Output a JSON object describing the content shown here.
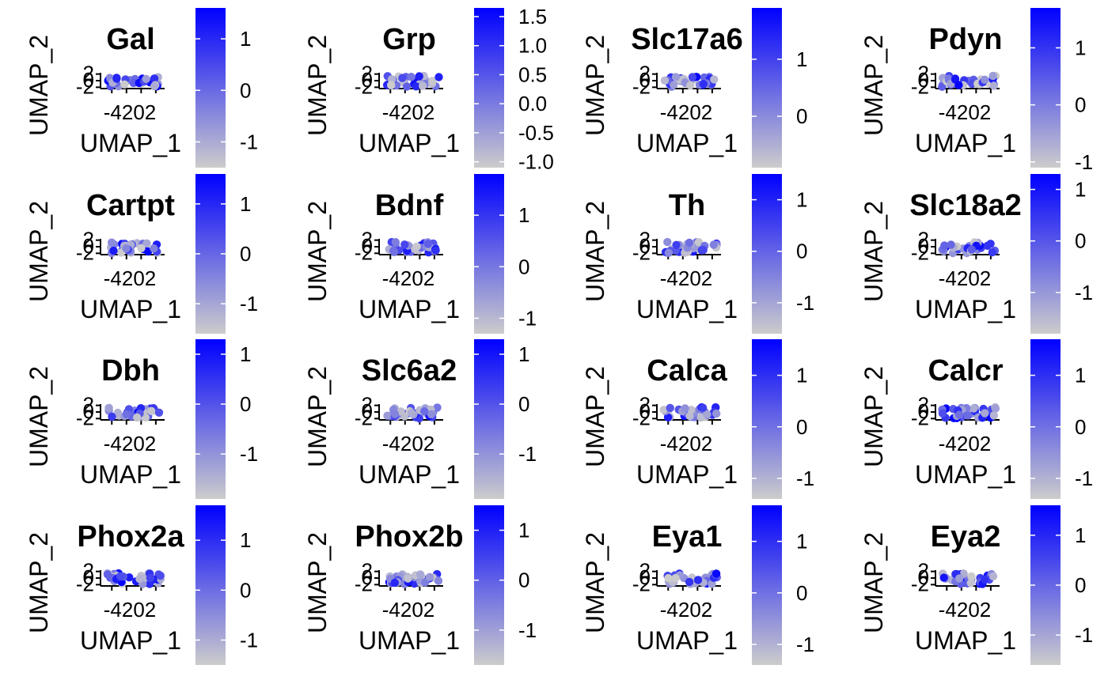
{
  "colors": {
    "low": "#cccccc",
    "high": "#0000ff"
  },
  "chart_data": [
    {
      "type": "scatter",
      "title": "Gal",
      "xlabel": "UMAP_1",
      "ylabel": "UMAP_2",
      "x_ticks": [
        "-4",
        "-2",
        "0",
        "2"
      ],
      "y_ticks": [
        "-2",
        "0",
        "2"
      ],
      "colorbar_ticks": [
        "1",
        "0",
        "-1"
      ],
      "colorbar_range": [
        -1.5,
        1.6
      ]
    },
    {
      "type": "scatter",
      "title": "Grp",
      "xlabel": "UMAP_1",
      "ylabel": "UMAP_2",
      "x_ticks": [
        "-4",
        "-2",
        "0",
        "2"
      ],
      "y_ticks": [
        "-2",
        "0",
        "2"
      ],
      "colorbar_ticks": [
        "1.5",
        "1.0",
        "0.5",
        "0.0",
        "-0.5",
        "-1.0"
      ],
      "colorbar_range": [
        -1.1,
        1.65
      ]
    },
    {
      "type": "scatter",
      "title": "Slc17a6",
      "xlabel": "UMAP_1",
      "ylabel": "UMAP_2",
      "x_ticks": [
        "-4",
        "-2",
        "0",
        "2"
      ],
      "y_ticks": [
        "-2",
        "0",
        "2"
      ],
      "colorbar_ticks": [
        "1",
        "0"
      ],
      "colorbar_range": [
        -0.9,
        1.9
      ]
    },
    {
      "type": "scatter",
      "title": "Pdyn",
      "xlabel": "UMAP_1",
      "ylabel": "UMAP_2",
      "x_ticks": [
        "-4",
        "-2",
        "0",
        "2"
      ],
      "y_ticks": [
        "-2",
        "0",
        "2"
      ],
      "colorbar_ticks": [
        "1",
        "0",
        "-1"
      ],
      "colorbar_range": [
        -1.1,
        1.7
      ]
    },
    {
      "type": "scatter",
      "title": "Cartpt",
      "xlabel": "UMAP_1",
      "ylabel": "UMAP_2",
      "x_ticks": [
        "-4",
        "-2",
        "0",
        "2"
      ],
      "y_ticks": [
        "-2",
        "0",
        "2"
      ],
      "colorbar_ticks": [
        "1",
        "0",
        "-1"
      ],
      "colorbar_range": [
        -1.6,
        1.6
      ]
    },
    {
      "type": "scatter",
      "title": "Bdnf",
      "xlabel": "UMAP_1",
      "ylabel": "UMAP_2",
      "x_ticks": [
        "-4",
        "-2",
        "0",
        "2"
      ],
      "y_ticks": [
        "-2",
        "0",
        "2"
      ],
      "colorbar_ticks": [
        "1",
        "0",
        "-1"
      ],
      "colorbar_range": [
        -1.3,
        1.8
      ]
    },
    {
      "type": "scatter",
      "title": "Th",
      "xlabel": "UMAP_1",
      "ylabel": "UMAP_2",
      "x_ticks": [
        "-4",
        "-2",
        "0",
        "2"
      ],
      "y_ticks": [
        "-2",
        "0",
        "2"
      ],
      "colorbar_ticks": [
        "1",
        "0",
        "-1"
      ],
      "colorbar_range": [
        -1.6,
        1.5
      ]
    },
    {
      "type": "scatter",
      "title": "Slc18a2",
      "xlabel": "UMAP_1",
      "ylabel": "UMAP_2",
      "x_ticks": [
        "-4",
        "-2",
        "0",
        "2"
      ],
      "y_ticks": [
        "-2",
        "0",
        "2"
      ],
      "colorbar_ticks": [
        "1",
        "0",
        "-1"
      ],
      "colorbar_range": [
        -1.8,
        1.3
      ]
    },
    {
      "type": "scatter",
      "title": "Dbh",
      "xlabel": "UMAP_1",
      "ylabel": "UMAP_2",
      "x_ticks": [
        "-4",
        "-2",
        "0",
        "2"
      ],
      "y_ticks": [
        "-2",
        "0",
        "2"
      ],
      "colorbar_ticks": [
        "1",
        "0",
        "-1"
      ],
      "colorbar_range": [
        -1.9,
        1.3
      ]
    },
    {
      "type": "scatter",
      "title": "Slc6a2",
      "xlabel": "UMAP_1",
      "ylabel": "UMAP_2",
      "x_ticks": [
        "-4",
        "-2",
        "0",
        "2"
      ],
      "y_ticks": [
        "-2",
        "0",
        "2"
      ],
      "colorbar_ticks": [
        "1",
        "0",
        "-1"
      ],
      "colorbar_range": [
        -1.9,
        1.3
      ]
    },
    {
      "type": "scatter",
      "title": "Calca",
      "xlabel": "UMAP_1",
      "ylabel": "UMAP_2",
      "x_ticks": [
        "-4",
        "-2",
        "0",
        "2"
      ],
      "y_ticks": [
        "-2",
        "0",
        "2"
      ],
      "colorbar_ticks": [
        "1",
        "0",
        "-1"
      ],
      "colorbar_range": [
        -1.4,
        1.7
      ]
    },
    {
      "type": "scatter",
      "title": "Calcr",
      "xlabel": "UMAP_1",
      "ylabel": "UMAP_2",
      "x_ticks": [
        "-4",
        "-2",
        "0",
        "2"
      ],
      "y_ticks": [
        "-2",
        "0",
        "2"
      ],
      "colorbar_ticks": [
        "1",
        "0",
        "-1"
      ],
      "colorbar_range": [
        -1.4,
        1.7
      ]
    },
    {
      "type": "scatter",
      "title": "Phox2a",
      "xlabel": "UMAP_1",
      "ylabel": "UMAP_2",
      "x_ticks": [
        "-4",
        "-2",
        "0",
        "2"
      ],
      "y_ticks": [
        "-2",
        "0",
        "2"
      ],
      "colorbar_ticks": [
        "1",
        "0",
        "-1"
      ],
      "colorbar_range": [
        -1.5,
        1.7
      ]
    },
    {
      "type": "scatter",
      "title": "Phox2b",
      "xlabel": "UMAP_1",
      "ylabel": "UMAP_2",
      "x_ticks": [
        "-4",
        "-2",
        "0",
        "2"
      ],
      "y_ticks": [
        "-2",
        "0",
        "2"
      ],
      "colorbar_ticks": [
        "1",
        "0",
        "-1"
      ],
      "colorbar_range": [
        -1.7,
        1.5
      ]
    },
    {
      "type": "scatter",
      "title": "Eya1",
      "xlabel": "UMAP_1",
      "ylabel": "UMAP_2",
      "x_ticks": [
        "-4",
        "-2",
        "0",
        "2"
      ],
      "y_ticks": [
        "-2",
        "0",
        "2"
      ],
      "colorbar_ticks": [
        "1",
        "0",
        "-1"
      ],
      "colorbar_range": [
        -1.4,
        1.7
      ]
    },
    {
      "type": "scatter",
      "title": "Eya2",
      "xlabel": "UMAP_1",
      "ylabel": "UMAP_2",
      "x_ticks": [
        "-4",
        "-2",
        "0",
        "2"
      ],
      "y_ticks": [
        "-2",
        "0",
        "2"
      ],
      "colorbar_ticks": [
        "1",
        "0",
        "-1"
      ],
      "colorbar_range": [
        -1.6,
        1.6
      ]
    }
  ]
}
